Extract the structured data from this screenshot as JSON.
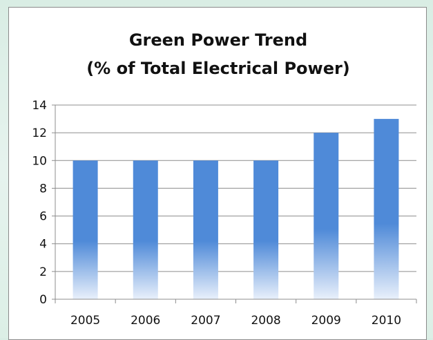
{
  "chart_data": {
    "type": "bar",
    "title_lines": [
      "Green Power Trend",
      "(% of Total Electrical Power)"
    ],
    "categories": [
      "2005",
      "2006",
      "2007",
      "2008",
      "2009",
      "2010"
    ],
    "values": [
      10,
      10,
      10,
      10,
      12,
      13
    ],
    "ylim": [
      0,
      14
    ],
    "yticks": [
      "0",
      "2",
      "4",
      "6",
      "8",
      "10",
      "12",
      "14"
    ],
    "grid": true,
    "legend": "none",
    "bar_color": "#4f8ad8",
    "xlabel": "",
    "ylabel": ""
  }
}
